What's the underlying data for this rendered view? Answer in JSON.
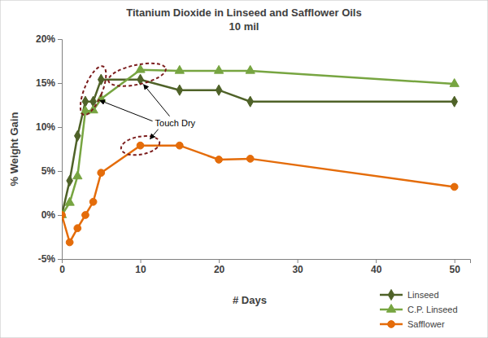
{
  "chart_data": {
    "type": "line",
    "title": "Titanium Dioxide in Linseed and Safflower Oils",
    "subtitle": "10 mil",
    "x_label": "# Days",
    "y_label": "% Weight Gain",
    "x": [
      0,
      1,
      2,
      3,
      4,
      5,
      10,
      15,
      20,
      24,
      50
    ],
    "xlim": [
      0,
      52
    ],
    "xticks": [
      0,
      10,
      20,
      30,
      40,
      50
    ],
    "ylim": [
      -5,
      20
    ],
    "yticks": [
      {
        "value": -5,
        "label": "-5%"
      },
      {
        "value": 0,
        "label": "0%"
      },
      {
        "value": 5,
        "label": "5%"
      },
      {
        "value": 10,
        "label": "10%"
      },
      {
        "value": 15,
        "label": "15%"
      },
      {
        "value": 20,
        "label": "20%"
      }
    ],
    "grid": false,
    "legend": "lower right",
    "annotations": [
      {
        "text": "Touch Dry"
      }
    ],
    "series": [
      {
        "name": "Linseed",
        "color": "#4f6228",
        "marker": "diamond",
        "line_style": "solid",
        "values": [
          0,
          3.9,
          9.0,
          12.9,
          12.9,
          15.4,
          15.4,
          14.2,
          14.2,
          12.9,
          12.9
        ]
      },
      {
        "name": "C.P. Linseed",
        "color": "#77a541",
        "marker": "triangle",
        "line_style": "solid",
        "values": [
          0,
          1.4,
          4.4,
          11.8,
          11.9,
          13.2,
          16.5,
          16.4,
          16.4,
          16.4,
          14.9
        ]
      },
      {
        "name": "Safflower",
        "color": "#e46c0a",
        "marker": "circle",
        "line_style": "solid",
        "values": [
          0,
          -3.1,
          -1.5,
          0.0,
          1.5,
          4.8,
          7.9,
          7.9,
          6.3,
          6.4,
          3.2
        ]
      }
    ]
  }
}
